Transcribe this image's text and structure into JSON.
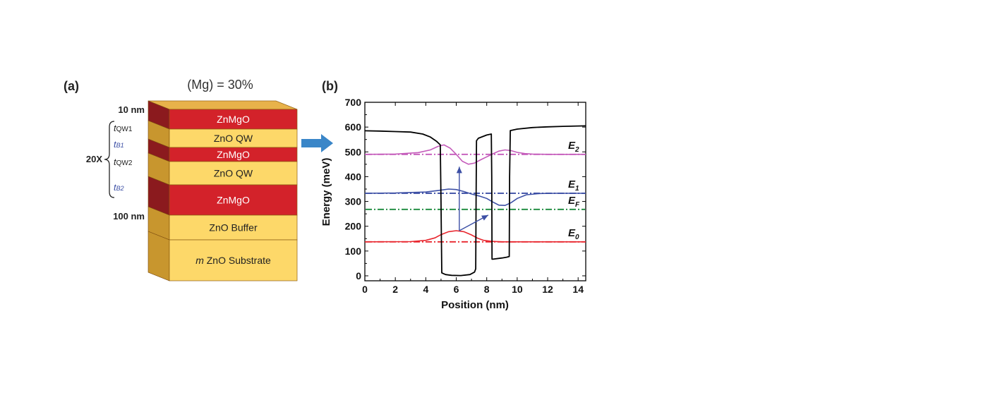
{
  "panel_a": {
    "label": "(a)",
    "title": "(Mg) = 30%",
    "layers": [
      {
        "name": "ZnMgO"
      },
      {
        "name": "ZnO QW"
      },
      {
        "name": "ZnMgO"
      },
      {
        "name": "ZnO QW"
      },
      {
        "name": "ZnMgO"
      },
      {
        "name": "ZnO Buffer"
      },
      {
        "name_italic": "m",
        "name": " ZnO Substrate"
      }
    ],
    "annotations": {
      "top_thickness": "10 nm",
      "buffer_thickness": "100 nm",
      "repeat": "20X",
      "t_qw1": {
        "t": "t",
        "sub": "QW1"
      },
      "t_b1": {
        "t": "t",
        "sub": "B1"
      },
      "t_qw2": {
        "t": "t",
        "sub": "QW2"
      },
      "t_b2": {
        "t": "t",
        "sub": "B2"
      }
    },
    "colors": {
      "znmgo_front": "#d3222a",
      "znmgo_side": "#8b1a1e",
      "zno_front": "#fdd869",
      "zno_side": "#c8962e",
      "top_face": "#e8b24a",
      "arrow": "#3a86c8"
    }
  },
  "panel_b": {
    "label": "(b)",
    "chart_data": {
      "type": "line",
      "xlabel": "Position (nm)",
      "ylabel": "Energy (meV)",
      "xlim": [
        0,
        14.5
      ],
      "ylim": [
        -20,
        700
      ],
      "xticks": [
        0,
        2,
        4,
        6,
        8,
        10,
        12,
        14
      ],
      "yticks": [
        0,
        100,
        200,
        300,
        400,
        500,
        600,
        700
      ],
      "levels": [
        {
          "label": "E",
          "sub": "2",
          "energy": 490,
          "color": "#c45aba"
        },
        {
          "label": "E",
          "sub": "1",
          "energy": 333,
          "color": "#3c4fa5"
        },
        {
          "label": "E",
          "sub": "F",
          "energy": 268,
          "color": "#1a8a3c"
        },
        {
          "label": "E",
          "sub": "0",
          "energy": 137,
          "color": "#e8262e"
        }
      ],
      "potential": {
        "color": "#000000",
        "x": [
          0,
          1,
          2,
          3,
          3.8,
          4.3,
          4.7,
          4.95,
          5.0,
          5.05,
          5.3,
          5.7,
          6.3,
          6.9,
          7.2,
          7.28,
          7.3,
          7.33,
          7.45,
          8.0,
          8.3,
          8.33,
          8.35,
          8.4,
          9.0,
          9.3,
          9.48,
          9.5,
          9.55,
          10,
          11,
          12,
          13,
          14.5
        ],
        "y": [
          585,
          584,
          582,
          580,
          572,
          560,
          543,
          528,
          300,
          12,
          5,
          2,
          1,
          5,
          15,
          28,
          300,
          545,
          555,
          568,
          572,
          400,
          67,
          67,
          72,
          75,
          78,
          400,
          586,
          592,
          598,
          601,
          603,
          605
        ]
      },
      "wavefunctions": [
        {
          "level": "E2",
          "color": "#c45aba",
          "x": [
            0,
            2,
            3.5,
            4.3,
            4.8,
            5.2,
            5.6,
            6.0,
            6.4,
            6.8,
            7.2,
            7.6,
            8.0,
            8.4,
            8.8,
            9.2,
            9.6,
            10.0,
            10.5,
            11,
            12,
            14.5
          ],
          "y": [
            490,
            491,
            497,
            508,
            522,
            528,
            515,
            490,
            462,
            450,
            455,
            468,
            480,
            492,
            503,
            508,
            505,
            498,
            493,
            491,
            490,
            490
          ]
        },
        {
          "level": "E1",
          "color": "#3c4fa5",
          "x": [
            0,
            2,
            4,
            4.8,
            5.5,
            6.0,
            6.5,
            7.0,
            7.5,
            8.0,
            8.4,
            8.8,
            9.2,
            9.6,
            10.0,
            10.6,
            11.5,
            12.5,
            14.5
          ],
          "y": [
            333,
            334,
            338,
            344,
            350,
            348,
            340,
            330,
            322,
            312,
            298,
            285,
            284,
            295,
            312,
            327,
            332,
            333,
            333
          ]
        },
        {
          "level": "E0",
          "color": "#e8262e",
          "x": [
            0,
            3,
            4,
            4.6,
            5.0,
            5.5,
            6.0,
            6.5,
            7.0,
            7.4,
            7.8,
            8.3,
            9,
            10,
            14.5
          ],
          "y": [
            137,
            138,
            143,
            153,
            166,
            178,
            182,
            178,
            165,
            152,
            143,
            139,
            137,
            137,
            137
          ]
        }
      ],
      "arrows": [
        {
          "from": [
            6.2,
            182
          ],
          "to": [
            6.2,
            440
          ],
          "color": "#3c4fa5"
        },
        {
          "from": [
            6.2,
            182
          ],
          "to": [
            8.1,
            245
          ],
          "color": "#3c4fa5"
        }
      ]
    }
  }
}
